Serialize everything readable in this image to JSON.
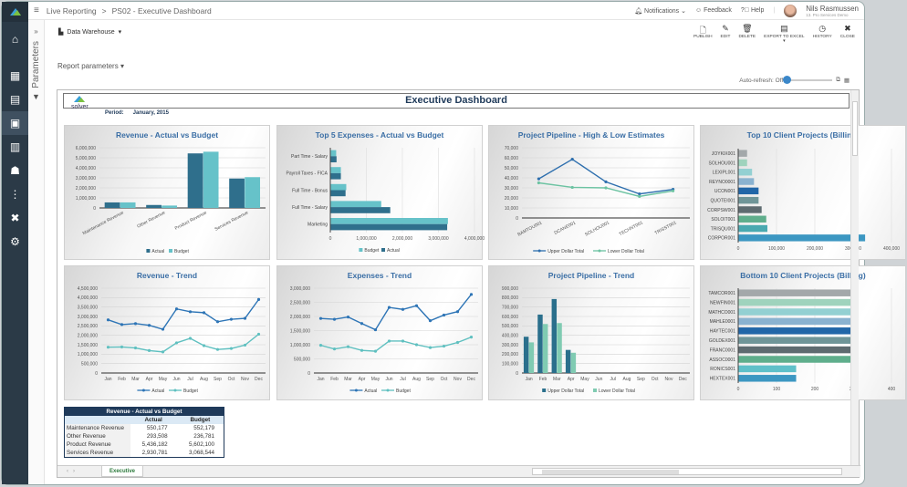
{
  "app": {
    "breadcrumb": [
      "Live Reporting",
      "PS02 - Executive Dashboard"
    ],
    "separator": ">",
    "notifications": "Notifications",
    "feedback": "Feedback",
    "help": "Help",
    "user_name": "Nils Rasmussen",
    "user_sub": "13. Pro Services Demo"
  },
  "sidebar": {
    "items": [
      {
        "icon": "home-icon"
      },
      {
        "icon": "buildings-icon"
      },
      {
        "icon": "clipboard-icon"
      },
      {
        "icon": "report-icon",
        "active": true
      },
      {
        "icon": "calculator-icon"
      },
      {
        "icon": "users-icon"
      },
      {
        "icon": "dots-icon"
      },
      {
        "icon": "tools-icon"
      },
      {
        "icon": "gear-icon"
      }
    ]
  },
  "params_panel": {
    "label": "Parameters",
    "expand": "»"
  },
  "source": {
    "label": "Data Warehouse"
  },
  "toolbar": {
    "publish": "PUBLISH",
    "edit": "EDIT",
    "delete": "DELETE",
    "export": "EXPORT TO EXCEL",
    "history": "HISTORY",
    "close": "CLOSE"
  },
  "report_parameters": "Report parameters",
  "auto_refresh": {
    "label": "Auto-refresh: Off",
    "on": false
  },
  "report": {
    "title": "Executive Dashboard",
    "logo": "solver",
    "period_label": "Period:",
    "period": "January, 2015",
    "sheet_tab": "Executive"
  },
  "table": {
    "title": "Revenue - Actual vs Budget",
    "headers": [
      "",
      "Actual",
      "Budget"
    ],
    "rows": [
      [
        "Maintenance Revenue",
        "550,177",
        "552,179"
      ],
      [
        "Other Revenue",
        "293,508",
        "236,781"
      ],
      [
        "Product Revenue",
        "5,436,182",
        "5,602,100"
      ],
      [
        "Services Revenue",
        "2,930,781",
        "3,068,544"
      ]
    ]
  },
  "chart_data": [
    {
      "type": "bar",
      "title": "Revenue - Actual vs Budget",
      "categories": [
        "Maintenance Revenue",
        "Other Revenue",
        "Product Revenue",
        "Services Revenue"
      ],
      "series": [
        {
          "name": "Actual",
          "values": [
            550177,
            293508,
            5436182,
            2930781
          ],
          "color": "#2f6f8c"
        },
        {
          "name": "Budget",
          "values": [
            552179,
            236781,
            5602100,
            3068544
          ],
          "color": "#66c2c9"
        }
      ],
      "ylim": [
        0,
        6000000
      ],
      "ytick": 1000000,
      "grid": true,
      "legend": "bottom"
    },
    {
      "type": "hbar",
      "title": "Top 5 Expenses - Actual vs Budget",
      "categories": [
        "Part Time - Salary",
        "Payroll Taxes - FICA",
        "Full Time - Bonus",
        "Full Time - Salary",
        "Marketing"
      ],
      "series": [
        {
          "name": "Budget",
          "values": [
            150000,
            280000,
            430000,
            1400000,
            3250000
          ],
          "color": "#66c2c9"
        },
        {
          "name": "Actual",
          "values": [
            160000,
            280000,
            410000,
            1650000,
            3230000
          ],
          "color": "#2f6f8c"
        }
      ],
      "xlim": [
        0,
        4000000
      ],
      "xtick": 1000000,
      "grid": true,
      "legend": "bottom"
    },
    {
      "type": "line",
      "title": "Project Pipeline - High & Low Estimates",
      "categories": [
        "BAMTOU001",
        "DCANE001",
        "SOLHOU001",
        "TECHNT001",
        "TRISST001"
      ],
      "series": [
        {
          "name": "Upper Dollar Total",
          "values": [
            39000,
            58500,
            36000,
            24000,
            28500
          ],
          "color": "#2e6fae"
        },
        {
          "name": "Lower Dollar Total",
          "values": [
            35000,
            30500,
            30000,
            21500,
            27000
          ],
          "color": "#6cc3a2"
        }
      ],
      "ylim": [
        0,
        70000
      ],
      "ytick": 10000,
      "grid": true,
      "legend": "bottom"
    },
    {
      "type": "hbar",
      "title": "Top 10 Client Projects (Billing)",
      "categories": [
        "JOYKIX001",
        "SOLHOU001",
        "LEXIPL001",
        "REYNO0001",
        "UCON001",
        "QUOTEI001",
        "CORPSW001",
        "SOLOIT001",
        "TRISQU001",
        "CORPOR001"
      ],
      "series": [
        {
          "values": [
            22000,
            22000,
            35000,
            40000,
            52000,
            52000,
            60000,
            72000,
            75000,
            330000
          ]
        }
      ],
      "colors": [
        "#a3a8aa",
        "#9fd3bd",
        "#93d0d2",
        "#8ab2d0",
        "#2166a8",
        "#6f9598",
        "#5e6b70",
        "#5fae8c",
        "#4aa9b0",
        "#3c97c2"
      ],
      "xlim": [
        0,
        400000
      ],
      "xtick": 100000,
      "grid": true,
      "legend": "none"
    },
    {
      "type": "line",
      "title": "Revenue - Trend",
      "categories": [
        "Jan",
        "Feb",
        "Mar",
        "Apr",
        "May",
        "Jun",
        "Jul",
        "Aug",
        "Sep",
        "Oct",
        "Nov",
        "Dec"
      ],
      "series": [
        {
          "name": "Actual",
          "values": [
            2820000,
            2570000,
            2620000,
            2530000,
            2320000,
            3400000,
            3250000,
            3200000,
            2720000,
            2850000,
            2900000,
            3900000
          ],
          "color": "#2e75b6"
        },
        {
          "name": "Budget",
          "values": [
            1370000,
            1380000,
            1330000,
            1190000,
            1120000,
            1600000,
            1840000,
            1450000,
            1250000,
            1300000,
            1480000,
            2060000
          ],
          "color": "#5fc0c0"
        }
      ],
      "ylim": [
        0,
        4500000
      ],
      "ytick": 500000,
      "grid": true,
      "legend": "bottom"
    },
    {
      "type": "line",
      "title": "Expenses - Trend",
      "categories": [
        "Jan",
        "Feb",
        "Mar",
        "Apr",
        "May",
        "Jun",
        "Jul",
        "Aug",
        "Sep",
        "Oct",
        "Nov",
        "Dec"
      ],
      "series": [
        {
          "name": "Actual",
          "values": [
            1930000,
            1900000,
            1980000,
            1750000,
            1530000,
            2320000,
            2250000,
            2380000,
            1850000,
            2050000,
            2170000,
            2780000
          ],
          "color": "#2e75b6"
        },
        {
          "name": "Budget",
          "values": [
            980000,
            850000,
            930000,
            800000,
            770000,
            1130000,
            1130000,
            1000000,
            900000,
            950000,
            1080000,
            1270000
          ],
          "color": "#5fc0c0"
        }
      ],
      "ylim": [
        0,
        3000000
      ],
      "ytick": 500000,
      "grid": true,
      "legend": "bottom"
    },
    {
      "type": "bar",
      "title": "Project Pipeline - Trend",
      "categories": [
        "Jan",
        "Feb",
        "Mar",
        "Apr",
        "May",
        "Jun",
        "Jul",
        "Aug",
        "Sep",
        "Oct",
        "Nov",
        "Dec"
      ],
      "series": [
        {
          "name": "Upper Dollar Total",
          "values": [
            385000,
            620000,
            785000,
            245000,
            0,
            0,
            0,
            0,
            0,
            0,
            0,
            0
          ],
          "color": "#2a6f8c"
        },
        {
          "name": "Lower Dollar Total",
          "values": [
            325000,
            520000,
            530000,
            215000,
            0,
            0,
            0,
            0,
            0,
            0,
            0,
            0
          ],
          "color": "#80cbb2"
        }
      ],
      "ylim": [
        0,
        900000
      ],
      "ytick": 100000,
      "grid": true,
      "legend": "bottom"
    },
    {
      "type": "hbar",
      "title": "Bottom 10 Client Projects (Billing)",
      "categories": [
        "TAMCOR001",
        "NEWFIN001",
        "MATHCO001",
        "MAHLE0001",
        "HAYTEC001",
        "GOLDEX001",
        "FRANC0001",
        "ASSOC0001",
        "RONICS001",
        "HEXTEX001"
      ],
      "series": [
        {
          "values": [
            300,
            300,
            300,
            300,
            300,
            300,
            300,
            300,
            150,
            150
          ]
        }
      ],
      "colors": [
        "#a3a8aa",
        "#9fd3bd",
        "#93d0d2",
        "#8ab2d0",
        "#2166a8",
        "#6f9598",
        "#5e6b70",
        "#5fae8c",
        "#5fc0c9",
        "#3c97c2"
      ],
      "xlim": [
        0,
        400
      ],
      "xtick": 100,
      "grid": true,
      "legend": "none"
    }
  ]
}
